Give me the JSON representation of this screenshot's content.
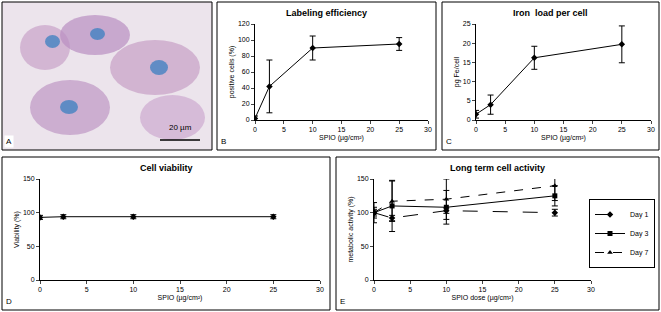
{
  "image_panel": {
    "panel_label": "A",
    "scale_bar": "20 µm"
  },
  "chart_data": [
    {
      "type": "line",
      "panel_label": "B",
      "title": "Labeling efficiency",
      "x_label": "SPIO (µg/cm²)",
      "y_label": "positive cells (%)",
      "x": [
        0,
        2.5,
        10,
        25
      ],
      "values": [
        2,
        42,
        90,
        95
      ],
      "errors": [
        3,
        33,
        15,
        8
      ],
      "color": "#000000",
      "marker": "diamond",
      "line_style": "solid",
      "xlim": [
        0,
        30
      ],
      "xticks": [
        0,
        5,
        10,
        15,
        20,
        25,
        30
      ],
      "ylim": [
        0,
        120
      ],
      "yticks": [
        0,
        20,
        40,
        60,
        80,
        100,
        120
      ],
      "grid": false
    },
    {
      "type": "line",
      "panel_label": "C",
      "title": "Iron  load per cell",
      "x_label": "SPIO (µg/cm²)",
      "y_label": "pg Fe/cell",
      "x": [
        0,
        2.5,
        10,
        25
      ],
      "values": [
        1.5,
        4,
        16.2,
        19.7
      ],
      "errors": [
        1,
        2.5,
        3,
        4.8
      ],
      "color": "#000000",
      "marker": "diamond",
      "line_style": "solid",
      "xlim": [
        0,
        30
      ],
      "xticks": [
        0,
        5,
        10,
        15,
        20,
        25,
        30
      ],
      "ylim": [
        0,
        25
      ],
      "yticks": [
        0,
        5,
        10,
        15,
        20,
        25
      ],
      "grid": false
    },
    {
      "type": "line",
      "panel_label": "D",
      "title": "Cell viability",
      "x_label": "SPIO (µg/cm²)",
      "y_label": "Viability (%)",
      "x": [
        0,
        2.5,
        10,
        25
      ],
      "values": [
        93,
        94,
        94,
        94
      ],
      "errors": [
        3,
        3,
        3,
        3
      ],
      "color": "#000000",
      "marker": "diamond",
      "line_style": "solid",
      "xlim": [
        0,
        30
      ],
      "xticks": [
        0,
        5,
        10,
        15,
        20,
        25,
        30
      ],
      "ylim": [
        0,
        150
      ],
      "yticks": [
        0,
        50,
        100,
        150
      ],
      "grid": false
    },
    {
      "type": "line",
      "panel_label": "E",
      "title": "Long term cell activity",
      "x_label": "SPIO dose (µg/cm²)",
      "y_label": "metabolic activity (%)",
      "x": [
        0,
        2.5,
        10,
        25
      ],
      "series": [
        {
          "name": "Day 1",
          "color": "#000000",
          "marker": "diamond",
          "line_style": "longdash",
          "values": [
            100,
            92,
            103,
            100
          ],
          "errors": [
            5,
            4,
            4,
            5
          ]
        },
        {
          "name": "Day 3",
          "color": "#000000",
          "marker": "square",
          "line_style": "solid",
          "values": [
            100,
            110,
            108,
            125
          ],
          "errors": [
            8,
            38,
            25,
            15
          ]
        },
        {
          "name": "Day 7",
          "color": "#000000",
          "marker": "triangle-up",
          "line_style": "dash",
          "values": [
            100,
            117,
            120,
            140
          ],
          "errors": [
            15,
            30,
            30,
            22
          ]
        }
      ],
      "legend": "right",
      "xlim": [
        0,
        30
      ],
      "xticks": [
        0,
        5,
        10,
        15,
        20,
        25,
        30
      ],
      "ylim": [
        0,
        150
      ],
      "yticks": [
        0,
        50,
        100,
        150
      ],
      "grid": false
    }
  ]
}
